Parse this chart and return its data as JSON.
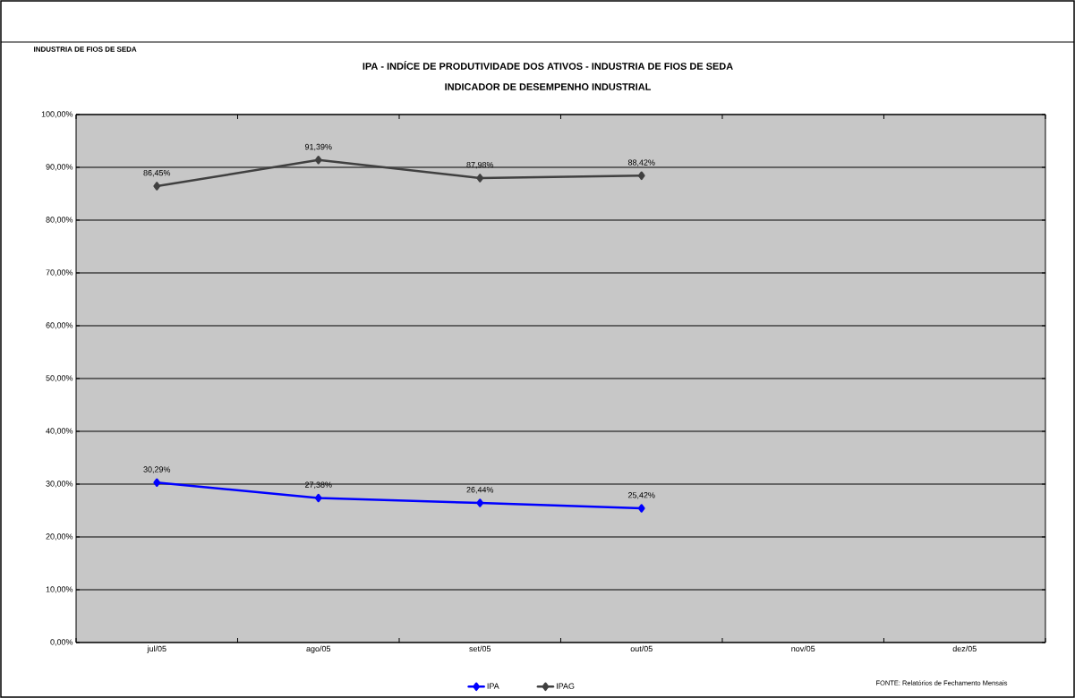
{
  "chart_data": {
    "type": "line",
    "title": "IPA - INDÍCE DE PRODUTIVIDADE DOS ATIVOS - INDUSTRIA DE FIOS DE SEDA",
    "subtitle": "INDICADOR DE DESEMPENHO INDUSTRIAL",
    "annotations": [
      "INDUSTRIA DE FIOS DE SEDA",
      "FONTE: Relatórios de Fechamento Mensais"
    ],
    "categories": [
      "jul/05",
      "ago/05",
      "set/05",
      "out/05",
      "nov/05",
      "dez/05"
    ],
    "series": [
      {
        "name": "IPA",
        "color": "#0000ff",
        "values": [
          30.29,
          27.38,
          26.44,
          25.42,
          null,
          null
        ],
        "value_labels": [
          "30,29%",
          "27,38%",
          "26,44%",
          "25,42%",
          null,
          null
        ]
      },
      {
        "name": "IPAG",
        "color": "#404040",
        "values": [
          86.45,
          91.39,
          87.98,
          88.42,
          null,
          null
        ],
        "value_labels": [
          "86,45%",
          "91,39%",
          "87,98%",
          "88,42%",
          null,
          null
        ]
      }
    ],
    "ylim": [
      0,
      100
    ],
    "yticks": [
      {
        "value": 0,
        "label": "0,00%"
      },
      {
        "value": 10,
        "label": "10,00%"
      },
      {
        "value": 20,
        "label": "20,00%"
      },
      {
        "value": 30,
        "label": "30,00%"
      },
      {
        "value": 40,
        "label": "40,00%"
      },
      {
        "value": 50,
        "label": "50,00%"
      },
      {
        "value": 60,
        "label": "60,00%"
      },
      {
        "value": 70,
        "label": "70,00%"
      },
      {
        "value": 80,
        "label": "80,00%"
      },
      {
        "value": 90,
        "label": "90,00%"
      },
      {
        "value": 100,
        "label": "100,00%"
      }
    ],
    "grid": "y",
    "legend": "bottom",
    "marker": "diamond",
    "line_style": "solid"
  }
}
